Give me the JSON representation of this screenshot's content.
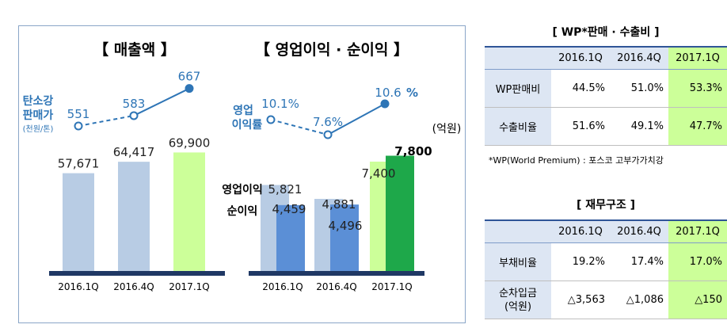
{
  "chart_data": [
    {
      "type": "bar",
      "title": "【 매출액 】",
      "categories": [
        "2016.1Q",
        "2016.4Q",
        "2017.1Q"
      ],
      "values": [
        57671,
        64417,
        69900
      ],
      "value_labels": [
        "57,671",
        "64,417",
        "69,900"
      ],
      "colors": [
        "#b8cce4",
        "#b8cce4",
        "#ccff99"
      ],
      "overlay_line": {
        "name_lines": [
          "탄소강",
          "판매가",
          "(천원/톤)"
        ],
        "values": [
          551,
          583,
          667
        ],
        "labels": [
          "551",
          "583",
          "667"
        ]
      }
    },
    {
      "type": "bar",
      "title": "【 영업이익 · 순이익 】",
      "unit": "(억원)",
      "categories": [
        "2016.1Q",
        "2016.4Q",
        "2017.1Q"
      ],
      "series": [
        {
          "name": "영업이익",
          "values": [
            5821,
            4881,
            7400
          ],
          "labels": [
            "5,821",
            "4,881",
            "7,400"
          ],
          "colors": [
            "#b8cce4",
            "#b8cce4",
            "#ccff99"
          ]
        },
        {
          "name": "순이익",
          "values": [
            4459,
            4496,
            7800
          ],
          "labels": [
            "4,459",
            "4,496",
            "7,800"
          ],
          "colors": [
            "#5b8fd6",
            "#5b8fd6",
            "#1ea84a"
          ]
        }
      ],
      "overlay_line": {
        "name_lines": [
          "영업",
          "이익률"
        ],
        "values": [
          10.1,
          7.6,
          10.6
        ],
        "labels": [
          "10.1%",
          "7.6%",
          "10.6"
        ],
        "last_suffix": "%"
      }
    }
  ],
  "colors": {
    "line": "#2e75b6",
    "axis": "#1f3864",
    "highlight": "#ccff99",
    "header": "#dde6f3"
  },
  "table_wp": {
    "title": "[ WP*판매 · 수출비 ]",
    "headers": [
      "",
      "2016.1Q",
      "2016.4Q",
      "2017.1Q"
    ],
    "rows": [
      {
        "label": "WP판매비",
        "values": [
          "44.5%",
          "51.0%",
          "53.3%"
        ]
      },
      {
        "label": "수출비율",
        "values": [
          "51.6%",
          "49.1%",
          "47.7%"
        ]
      }
    ]
  },
  "note": "*WP(World Premium) : 포스코 고부가가치강",
  "table_fin": {
    "title": "[ 재무구조 ]",
    "headers": [
      "",
      "2016.1Q",
      "2016.4Q",
      "2017.1Q"
    ],
    "rows": [
      {
        "label": "부채비율",
        "values": [
          "19.2%",
          "17.4%",
          "17.0%"
        ]
      },
      {
        "label": "순차입금 (억원)",
        "values": [
          "△3,563",
          "△1,086",
          "△150"
        ]
      }
    ]
  }
}
